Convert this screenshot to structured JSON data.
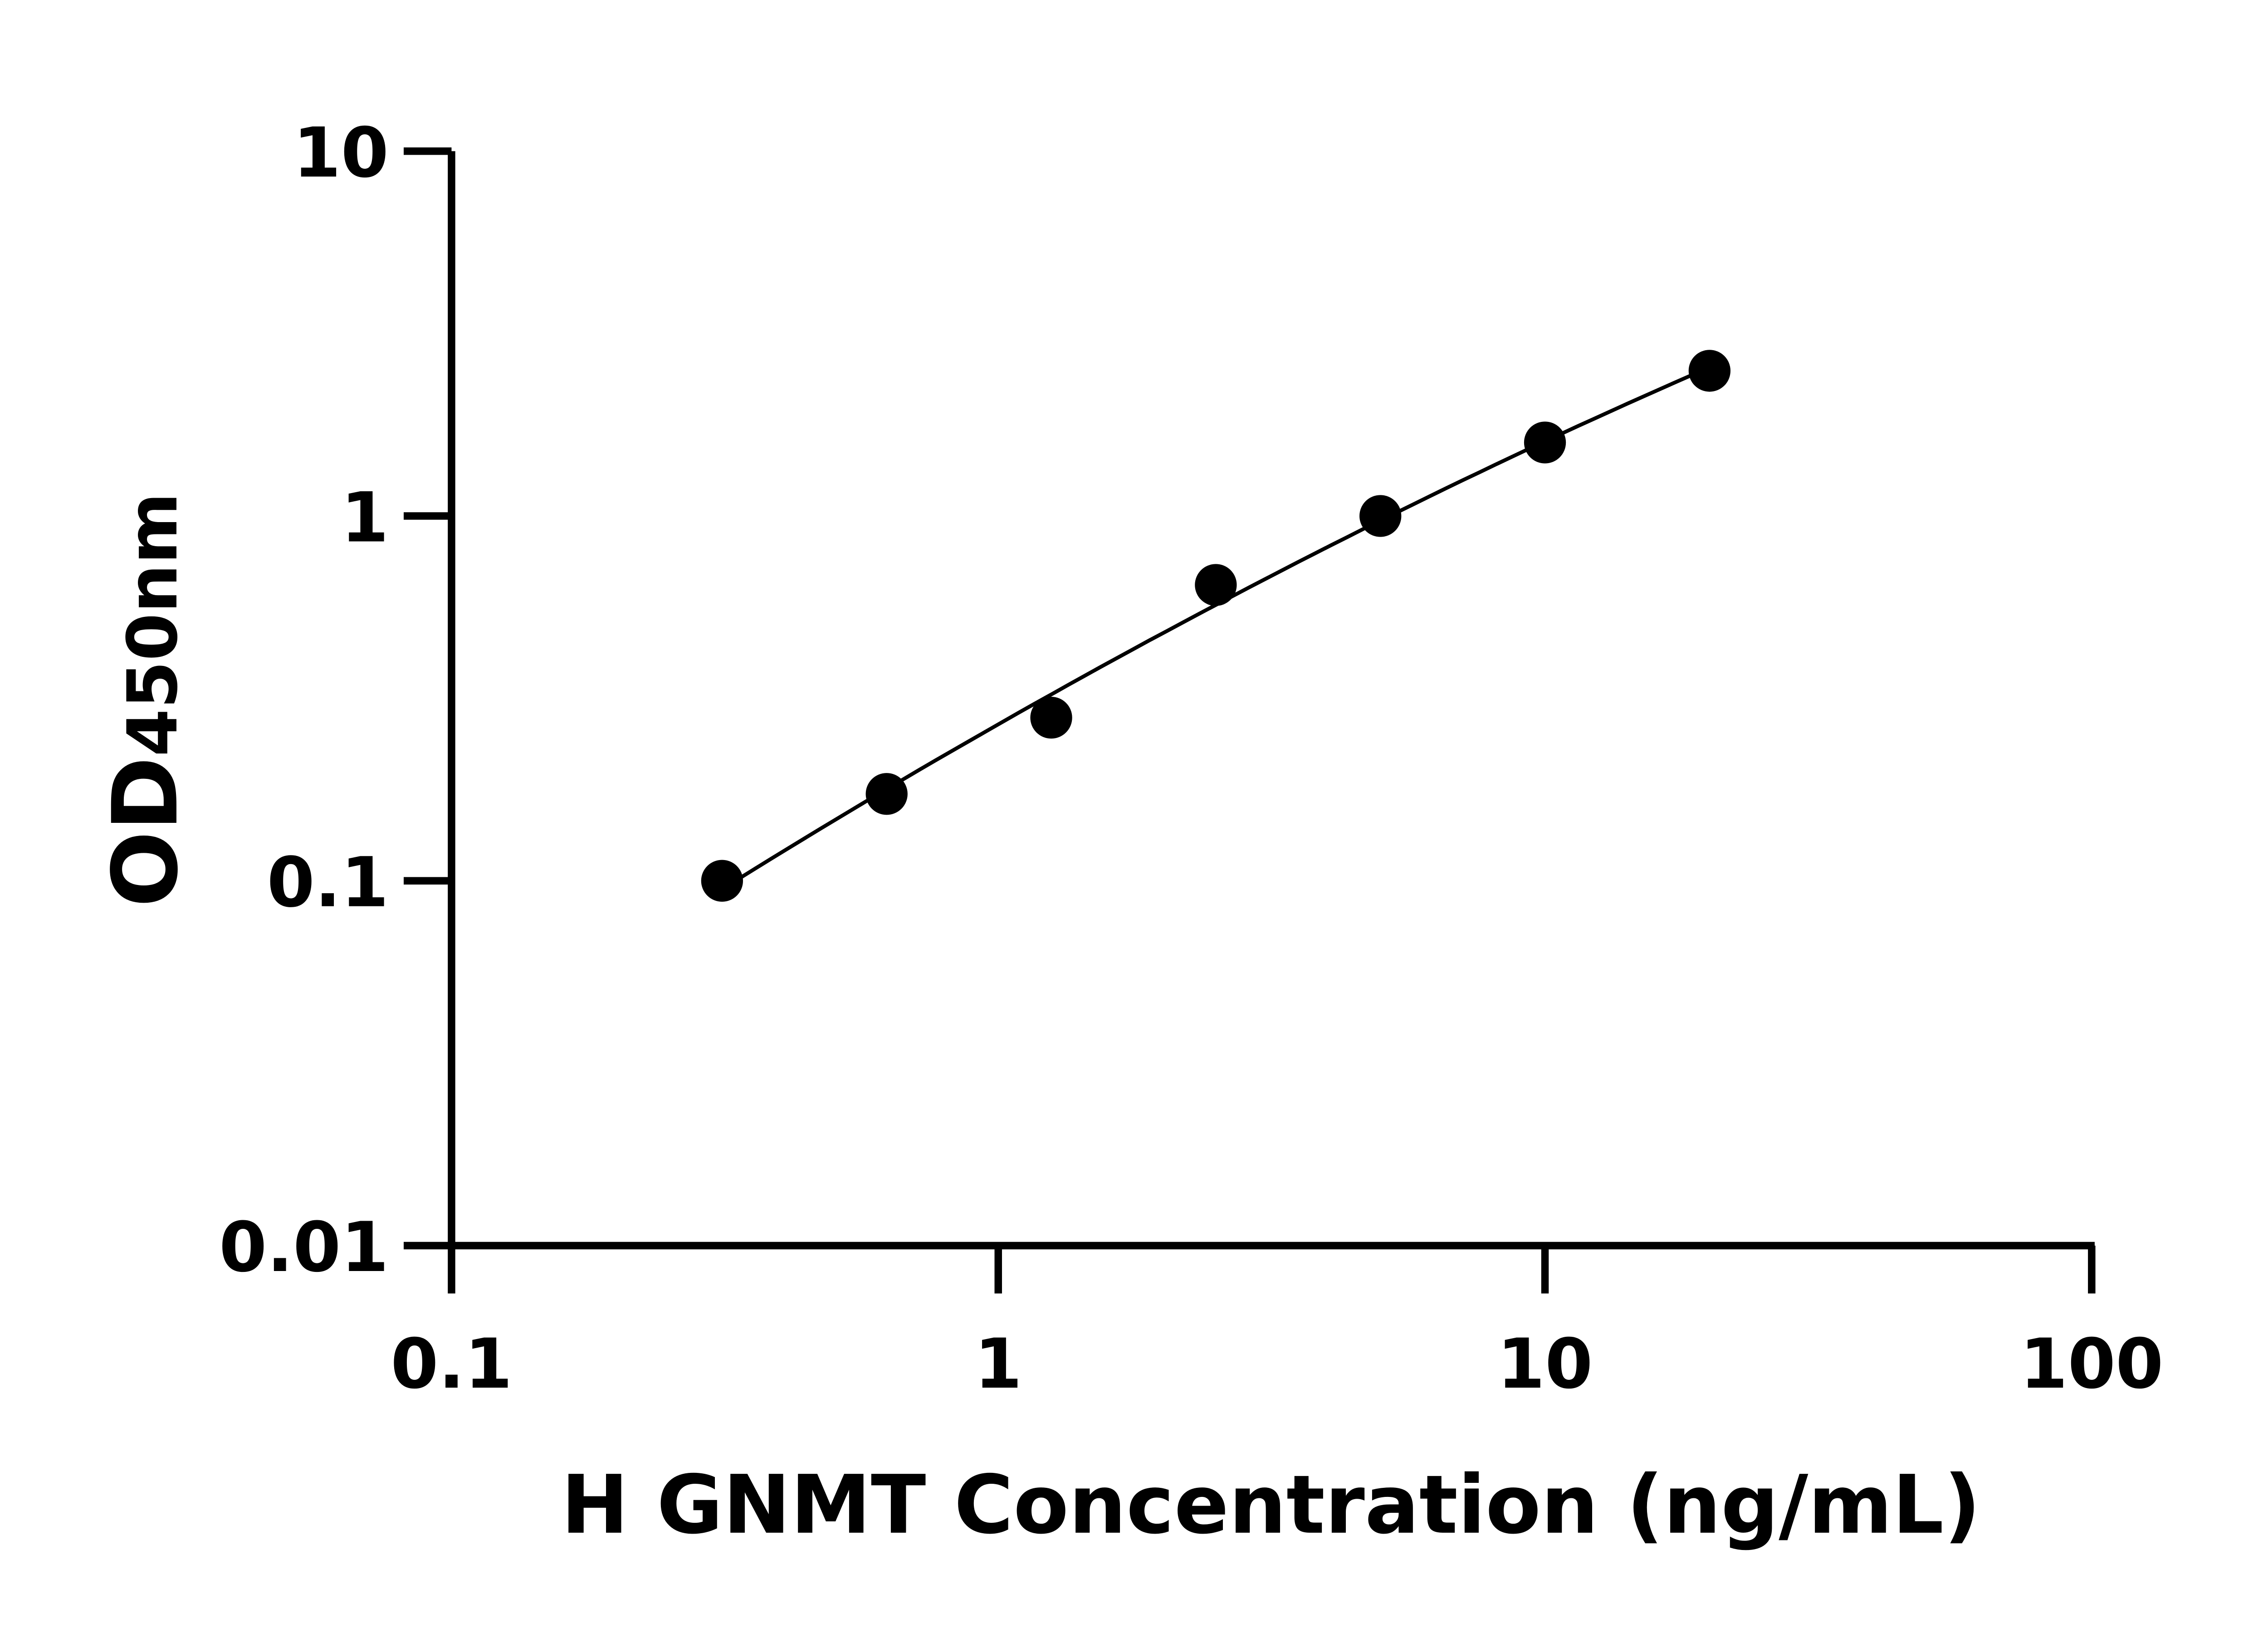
{
  "chart_data": {
    "type": "scatter",
    "title": "",
    "xlabel": "H GNMT Concentration (ng/mL)",
    "ylabel": {
      "main": "OD",
      "sub": "450nm"
    },
    "xscale": "log",
    "yscale": "log",
    "xlim": [
      0.1,
      100
    ],
    "ylim": [
      0.01,
      10
    ],
    "xticks": [
      "0.1",
      "1",
      "10",
      "100"
    ],
    "yticks": [
      "0.01",
      "0.1",
      "1",
      "10"
    ],
    "grid": false,
    "fit_line": true,
    "x": [
      0.3125,
      0.625,
      1.25,
      2.5,
      5,
      10,
      20
    ],
    "y": [
      0.1,
      0.173,
      0.28,
      0.647,
      1.0,
      1.59,
      2.5
    ],
    "colors": {
      "points": "#000000",
      "line": "#000000"
    }
  }
}
